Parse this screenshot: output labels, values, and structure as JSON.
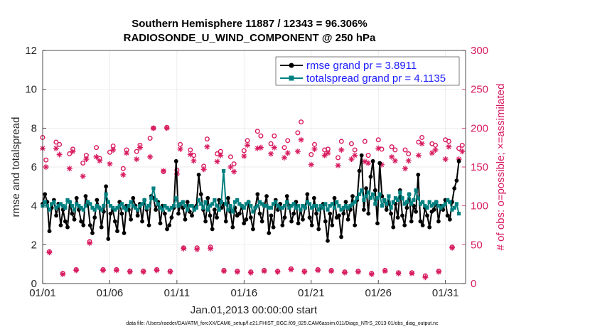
{
  "chart_data": {
    "type": "line",
    "title_line1": "Southern Hemisphere 11887 / 12343 = 96.306%",
    "title_line2": "RADIOSONDE_U_WIND_COMPONENT @ 250 hPa",
    "xlabel": "Jan.01,2013 00:00:00 start",
    "ylabel_left": "rmse and totalspread",
    "ylabel_right": "# of obs: o=possible; ×=assimilated",
    "footnote": "data file: /Users/raeder/DAI/ATM_forcXX/CAM6_setup/f.e21.FHIST_BGC.f09_025.CAM6assim.011/Diags_NTrS_2013-01/obs_diag_output.nc",
    "xlim": [
      0,
      31.5
    ],
    "ylim_left": [
      0,
      12
    ],
    "ylim_right": [
      0,
      300
    ],
    "x_ticks": [
      {
        "value": 0,
        "label": "01/01"
      },
      {
        "value": 5,
        "label": "01/06"
      },
      {
        "value": 10,
        "label": "01/11"
      },
      {
        "value": 15,
        "label": "01/16"
      },
      {
        "value": 20,
        "label": "01/21"
      },
      {
        "value": 25,
        "label": "01/26"
      },
      {
        "value": 30,
        "label": "01/31"
      }
    ],
    "y_ticks_left": [
      "0",
      "2",
      "4",
      "6",
      "8",
      "10",
      "12"
    ],
    "y_ticks_right": [
      "0",
      "50",
      "100",
      "150",
      "200",
      "250",
      "300"
    ],
    "colors": {
      "rmse": "#000000",
      "spread": "#008080",
      "obs": "#d81b60",
      "legend_text": "#1a1aff",
      "axis_right": "#d81b60"
    },
    "series": [
      {
        "name": "rmse grand pr = 3.8911",
        "axis": "left",
        "values": [
          4.1,
          4.6,
          4.2,
          2.7,
          3.9,
          4.3,
          3.5,
          4.1,
          3.0,
          3.8,
          3.2,
          2.9,
          4.2,
          3.6,
          3.3,
          4.4,
          3.8,
          3.2,
          3.0,
          4.5,
          4.1,
          3.0,
          2.6,
          3.4,
          4.3,
          3.9,
          2.9,
          3.7,
          5.0,
          2.3,
          3.6,
          3.8,
          3.2,
          2.7,
          4.2,
          3.6,
          2.6,
          4.0,
          3.8,
          3.3,
          4.4,
          4.0,
          3.5,
          4.1,
          3.2,
          4.3,
          3.8,
          3.0,
          4.5,
          4.4,
          3.8,
          4.2,
          3.1,
          4.0,
          3.6,
          2.8,
          3.0,
          3.4,
          3.9,
          6.3,
          3.6,
          4.1,
          3.9,
          3.3,
          4.2,
          3.7,
          3.5,
          3.9,
          4.0,
          5.6,
          4.6,
          3.8,
          3.2,
          4.4,
          3.5,
          2.8,
          3.8,
          3.4,
          4.3,
          3.9,
          4.1,
          3.2,
          4.4,
          3.7,
          2.9,
          3.9,
          3.5,
          3.6,
          4.0,
          3.1,
          3.3,
          4.2,
          3.4,
          2.8,
          3.9,
          4.6,
          3.6,
          3.2,
          4.0,
          4.5,
          2.6,
          3.5,
          2.9,
          4.3,
          3.8,
          4.1,
          3.0,
          3.4,
          4.5,
          4.0,
          3.2,
          3.6,
          4.2,
          3.1,
          3.8,
          3.3,
          3.9,
          4.6,
          3.4,
          3.0,
          4.4,
          3.6,
          2.8,
          3.9,
          4.1,
          3.2,
          2.2,
          3.6,
          3.0,
          4.4,
          3.4,
          3.5,
          2.4,
          3.6,
          4.2,
          3.3,
          3.8,
          4.5,
          3.0,
          4.3,
          5.8,
          6.6,
          3.8,
          4.9,
          3.6,
          5.5,
          6.3,
          4.8,
          3.1,
          6.2,
          4.5,
          4.3,
          3.8,
          4.2,
          3.6,
          2.9,
          4.1,
          3.4,
          4.8,
          3.5,
          3.0,
          3.9,
          4.6,
          3.2,
          4.0,
          3.7,
          5.6,
          3.2,
          3.0,
          3.9,
          3.5,
          2.9,
          3.7,
          3.8,
          4.2,
          3.2,
          4.0,
          3.8,
          4.3,
          3.5,
          3.3,
          4.2,
          4.9,
          5.3,
          6.3
        ]
      },
      {
        "name": "totalspread grand pr = 4.1135",
        "axis": "left",
        "values": [
          4.0,
          4.2,
          4.0,
          3.8,
          4.1,
          4.2,
          3.9,
          4.0,
          4.1,
          4.0,
          3.9,
          4.3,
          4.2,
          4.0,
          3.8,
          4.1,
          4.0,
          3.9,
          3.8,
          4.0,
          4.2,
          4.1,
          3.9,
          3.8,
          4.0,
          3.9,
          3.8,
          4.0,
          4.6,
          4.2,
          4.0,
          3.9,
          3.8,
          3.9,
          4.0,
          4.1,
          3.9,
          3.8,
          4.0,
          4.2,
          4.0,
          3.9,
          3.8,
          4.0,
          4.1,
          4.3,
          3.9,
          4.0,
          4.4,
          4.9,
          4.3,
          4.1,
          3.9,
          3.8,
          4.0,
          3.9,
          3.8,
          3.9,
          4.0,
          4.4,
          4.0,
          4.1,
          4.2,
          4.0,
          3.8,
          4.0,
          4.0,
          3.8,
          3.9,
          4.3,
          4.1,
          3.9,
          4.2,
          3.8,
          4.0,
          4.1,
          4.3,
          4.0,
          3.8,
          4.2,
          5.8,
          4.1,
          3.8,
          4.0,
          3.7,
          4.2,
          4.3,
          4.1,
          4.0,
          3.9,
          4.1,
          4.2,
          4.0,
          3.7,
          3.9,
          4.0,
          4.2,
          4.1,
          4.0,
          4.0,
          3.9,
          3.9,
          4.1,
          4.2,
          4.0,
          3.9,
          3.9,
          4.0,
          4.2,
          3.9,
          4.0,
          4.1,
          3.9,
          4.0,
          3.8,
          4.0,
          3.9,
          4.2,
          4.1,
          3.9,
          4.0,
          4.0,
          3.8,
          4.0,
          3.9,
          4.1,
          3.8,
          4.0,
          4.1,
          3.9,
          4.2,
          4.0,
          3.8,
          3.9,
          4.0,
          3.9,
          4.0,
          4.1,
          4.2,
          4.4,
          4.6,
          4.8,
          4.3,
          4.5,
          4.7,
          4.4,
          4.6,
          4.1,
          4.4,
          4.6,
          4.0,
          4.3,
          4.1,
          4.5,
          3.9,
          4.2,
          4.4,
          4.3,
          4.7,
          4.4,
          4.1,
          4.2,
          4.6,
          4.1,
          4.3,
          4.8,
          4.4,
          4.1,
          4.2,
          4.0,
          3.9,
          4.2,
          4.0,
          4.1,
          4.2,
          4.0,
          3.9,
          4.0,
          4.1,
          4.3,
          4.2,
          3.8,
          3.9,
          4.1,
          3.6
        ]
      },
      {
        "name": "possible",
        "axis": "right",
        "marker": "circle",
        "times": [
          0.0,
          0.25,
          0.5,
          1.0,
          1.25,
          1.5,
          2.0,
          2.25,
          2.5,
          3.0,
          3.25,
          3.5,
          4.0,
          4.25,
          4.5,
          5.0,
          5.25,
          5.5,
          6.0,
          6.25,
          6.5,
          7.0,
          7.25,
          7.5,
          8.0,
          8.25,
          8.5,
          9.0,
          9.25,
          9.5,
          10.0,
          10.25,
          10.5,
          11.0,
          11.25,
          11.5,
          12.0,
          12.25,
          12.5,
          13.0,
          13.25,
          13.5,
          14.0,
          14.25,
          14.5,
          15.0,
          15.25,
          15.5,
          16.0,
          16.25,
          16.5,
          17.0,
          17.25,
          17.5,
          18.0,
          18.25,
          18.5,
          19.0,
          19.25,
          19.5,
          20.0,
          20.25,
          20.5,
          21.0,
          21.25,
          21.5,
          22.0,
          22.25,
          22.5,
          23.0,
          23.25,
          23.5,
          24.0,
          24.25,
          24.5,
          25.0,
          25.25,
          25.5,
          26.0,
          26.25,
          26.5,
          27.0,
          27.25,
          27.5,
          28.0,
          28.25,
          28.5,
          29.0,
          29.25,
          29.5,
          30.0,
          30.25,
          30.5,
          31.0,
          31.25
        ],
        "values": [
          188,
          159,
          41,
          182,
          179,
          13,
          167,
          173,
          18,
          155,
          165,
          54,
          175,
          161,
          18,
          169,
          177,
          18,
          148,
          172,
          16,
          170,
          178,
          16,
          187,
          200,
          18,
          144,
          201,
          16,
          146,
          179,
          46,
          172,
          165,
          46,
          151,
          186,
          47,
          167,
          170,
          17,
          163,
          154,
          16,
          171,
          184,
          15,
          196,
          190,
          17,
          180,
          190,
          16,
          175,
          184,
          19,
          194,
          208,
          16,
          166,
          179,
          18,
          172,
          173,
          17,
          162,
          183,
          15,
          180,
          172,
          16,
          183,
          165,
          13,
          185,
          173,
          17,
          176,
          172,
          14,
          172,
          167,
          14,
          182,
          188,
          10,
          180,
          178,
          16,
          185,
          183,
          47,
          174,
          178
        ]
      },
      {
        "name": "assimilated",
        "axis": "right",
        "marker": "asterisk",
        "times": [
          0.0,
          0.25,
          0.5,
          1.0,
          1.25,
          1.5,
          2.0,
          2.25,
          2.5,
          3.0,
          3.25,
          3.5,
          4.0,
          4.25,
          4.5,
          5.0,
          5.25,
          5.5,
          6.0,
          6.25,
          6.5,
          7.0,
          7.25,
          7.5,
          8.0,
          8.25,
          8.5,
          9.0,
          9.25,
          9.5,
          10.0,
          10.25,
          10.5,
          11.0,
          11.25,
          11.5,
          12.0,
          12.25,
          12.5,
          13.0,
          13.25,
          13.5,
          14.0,
          14.25,
          14.5,
          15.0,
          15.25,
          15.5,
          16.0,
          16.25,
          16.5,
          17.0,
          17.25,
          17.5,
          18.0,
          18.25,
          18.5,
          19.0,
          19.25,
          19.5,
          20.0,
          20.25,
          20.5,
          21.0,
          21.25,
          21.5,
          22.0,
          22.25,
          22.5,
          23.0,
          23.25,
          23.5,
          24.0,
          24.25,
          24.5,
          25.0,
          25.25,
          25.5,
          26.0,
          26.25,
          26.5,
          27.0,
          27.25,
          27.5,
          28.0,
          28.25,
          28.5,
          29.0,
          29.25,
          29.5,
          30.0,
          30.25,
          30.5,
          31.0,
          31.25
        ],
        "values": [
          174,
          150,
          40,
          174,
          166,
          12,
          148,
          170,
          17,
          138,
          160,
          52,
          163,
          158,
          17,
          154,
          172,
          17,
          140,
          168,
          15,
          160,
          175,
          15,
          163,
          200,
          17,
          145,
          200,
          15,
          141,
          173,
          45,
          166,
          158,
          44,
          147,
          176,
          45,
          157,
          165,
          16,
          150,
          144,
          15,
          164,
          178,
          14,
          174,
          175,
          16,
          167,
          175,
          15,
          162,
          168,
          18,
          170,
          185,
          15,
          153,
          173,
          17,
          165,
          168,
          16,
          152,
          172,
          14,
          160,
          165,
          15,
          157,
          155,
          12,
          174,
          153,
          16,
          163,
          158,
          13,
          148,
          158,
          13,
          165,
          180,
          8,
          168,
          172,
          15,
          160,
          176,
          46,
          160,
          170
        ]
      }
    ]
  }
}
